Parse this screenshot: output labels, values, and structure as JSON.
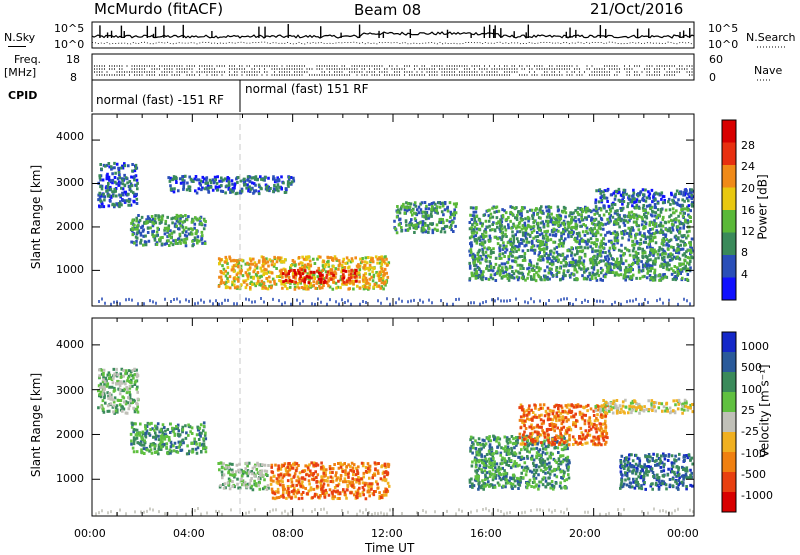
{
  "header": {
    "station": "McMurdo (fitACF)",
    "beam": "Beam 08",
    "date": "21/Oct/2016"
  },
  "status_panel": {
    "nsky_label": "N.Sky",
    "nsky_ticks": [
      "10^5",
      "10^0"
    ],
    "nsearch_label": "N.Search",
    "nsearch_ticks": [
      "10^5",
      "10^0"
    ],
    "freq_label": "Freq.",
    "freq_unit": "[MHz]",
    "freq_ticks": [
      "18",
      "8"
    ],
    "nave_label": "Nave",
    "nave_ticks": [
      "60",
      "0"
    ],
    "cpid_label": "CPID",
    "cpid_segments": [
      {
        "label": "normal (fast) -151 RF",
        "start_hour": 0,
        "end_hour": 6
      },
      {
        "label": "normal (fast) 151 RF",
        "start_hour": 6,
        "end_hour": 24
      }
    ]
  },
  "chart_data": [
    {
      "type": "heatmap",
      "name": "power",
      "xlabel": "",
      "ylabel": "Slant Range [km]",
      "xlim": [
        0,
        24
      ],
      "ylim": [
        180,
        4600
      ],
      "yticks": [
        "1000",
        "2000",
        "3000",
        "4000"
      ],
      "colorbar": {
        "label": "Power [dB]",
        "ticks": [
          "4",
          "8",
          "12",
          "16",
          "20",
          "24",
          "28"
        ],
        "colors": [
          "#1010ff",
          "#2a4fb8",
          "#3a8a5a",
          "#5ab838",
          "#e8c810",
          "#f08a18",
          "#e83010",
          "#d80000"
        ]
      },
      "regions": [
        {
          "t0": 5.0,
          "t1": 11.8,
          "r0": 600,
          "r1": 1350,
          "level": 4
        },
        {
          "t0": 7.5,
          "t1": 10.5,
          "r0": 750,
          "r1": 1050,
          "level": 6
        },
        {
          "t0": 1.5,
          "t1": 4.5,
          "r0": 1600,
          "r1": 2300,
          "level": 2
        },
        {
          "t0": 0.2,
          "t1": 1.8,
          "r0": 2500,
          "r1": 3500,
          "level": 1
        },
        {
          "t0": 12.0,
          "t1": 14.5,
          "r0": 1900,
          "r1": 2600,
          "level": 2
        },
        {
          "t0": 15.0,
          "t1": 23.9,
          "r0": 800,
          "r1": 2500,
          "level": 2
        },
        {
          "t0": 3.0,
          "t1": 8.0,
          "r0": 2800,
          "r1": 3200,
          "level": 1
        },
        {
          "t0": 20.0,
          "t1": 23.9,
          "r0": 2500,
          "r1": 2900,
          "level": 1
        }
      ]
    },
    {
      "type": "heatmap",
      "name": "velocity",
      "xlabel": "Time UT",
      "ylabel": "Slant Range [km]",
      "xlim": [
        0,
        24
      ],
      "ylim": [
        180,
        4600
      ],
      "xticks": [
        "00:00",
        "04:00",
        "08:00",
        "12:00",
        "16:00",
        "20:00",
        "00:00"
      ],
      "yticks": [
        "1000",
        "2000",
        "3000",
        "4000"
      ],
      "colorbar": {
        "label": "Velocity [m s⁻¹]",
        "ticks": [
          "1000",
          "500",
          "100",
          "25",
          "-25",
          "-100",
          "-500",
          "-1000"
        ],
        "colors": [
          "#1428c8",
          "#2a5a9a",
          "#3a8a5a",
          "#60c040",
          "#c0c0b8",
          "#f0b020",
          "#f08010",
          "#e84010",
          "#d80000"
        ]
      },
      "regions": [
        {
          "t0": 5.0,
          "t1": 7.0,
          "r0": 800,
          "r1": 1400,
          "level": 3
        },
        {
          "t0": 7.0,
          "t1": 11.8,
          "r0": 600,
          "r1": 1400,
          "level": 6
        },
        {
          "t0": 1.5,
          "t1": 4.5,
          "r0": 1600,
          "r1": 2300,
          "level": 2
        },
        {
          "t0": 0.2,
          "t1": 1.8,
          "r0": 2500,
          "r1": 3500,
          "level": 3
        },
        {
          "t0": 15.0,
          "t1": 19.0,
          "r0": 800,
          "r1": 2000,
          "level": 2
        },
        {
          "t0": 17.0,
          "t1": 20.5,
          "r0": 1800,
          "r1": 2700,
          "level": 6
        },
        {
          "t0": 21.0,
          "t1": 23.9,
          "r0": 800,
          "r1": 1600,
          "level": 1
        },
        {
          "t0": 20.0,
          "t1": 23.9,
          "r0": 2500,
          "r1": 2800,
          "level": 4
        }
      ]
    }
  ]
}
